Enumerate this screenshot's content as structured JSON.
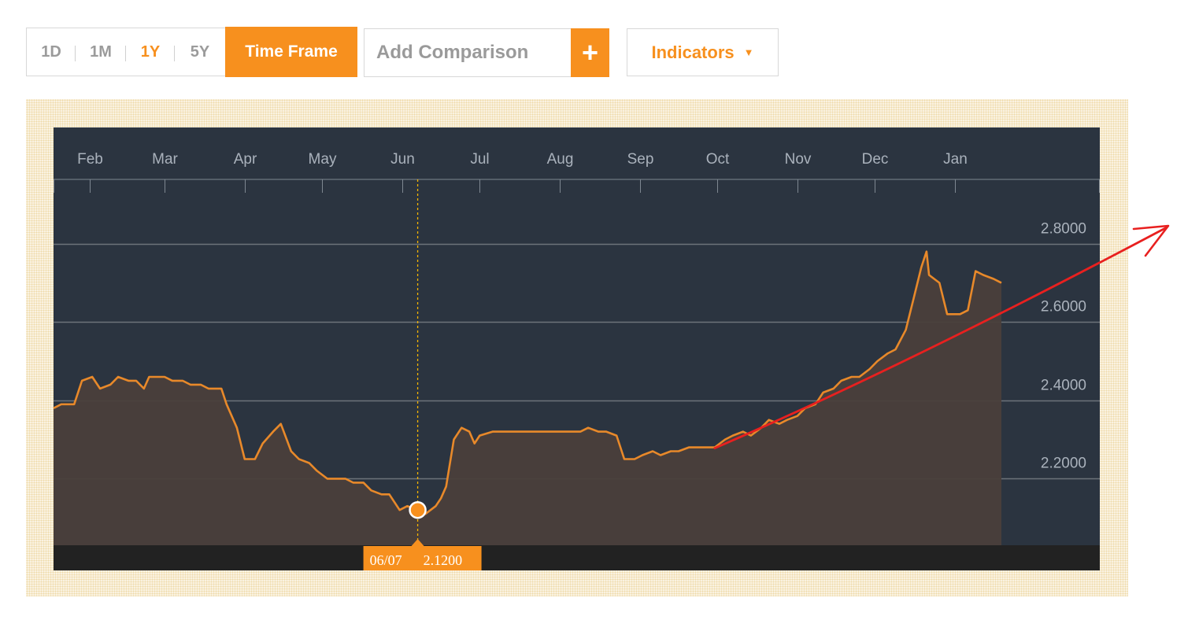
{
  "toolbar": {
    "ranges": [
      {
        "label": "1D",
        "active": false
      },
      {
        "label": "1M",
        "active": false
      },
      {
        "label": "1Y",
        "active": true
      },
      {
        "label": "5Y",
        "active": false
      }
    ],
    "time_frame_label": "Time Frame",
    "comparison_placeholder": "Add Comparison",
    "add_label": "+",
    "indicators_label": "Indicators",
    "indicators_caret": "▼"
  },
  "colors": {
    "accent": "#f7901e",
    "plot_bg": "#2b3440",
    "area_fill": "#4a3f3b",
    "line": "#e8892a",
    "annotation_arrow": "#e8201f"
  },
  "tooltip": {
    "date": "06/07",
    "value": "2.1200"
  },
  "chart_data": {
    "type": "area",
    "xlabel": "",
    "ylabel": "",
    "x_ticks": [
      "Feb",
      "Mar",
      "Apr",
      "May",
      "Jun",
      "Jul",
      "Aug",
      "Sep",
      "Oct",
      "Nov",
      "Dec",
      "Jan"
    ],
    "y_ticks": [
      "2.2000",
      "2.4000",
      "2.6000",
      "2.8000"
    ],
    "ylim": [
      2.03,
      2.93
    ],
    "x_domain": [
      "2016-01-18",
      "2017-01-30"
    ],
    "grid": true,
    "highlight": {
      "date": "2016-06-07",
      "value": 2.12
    },
    "series": [
      {
        "values": [
          [
            "2016-01-18",
            2.38
          ],
          [
            "2016-01-21",
            2.39
          ],
          [
            "2016-01-26",
            2.39
          ],
          [
            "2016-01-29",
            2.45
          ],
          [
            "2016-02-02",
            2.46
          ],
          [
            "2016-02-05",
            2.43
          ],
          [
            "2016-02-09",
            2.44
          ],
          [
            "2016-02-12",
            2.46
          ],
          [
            "2016-02-16",
            2.45
          ],
          [
            "2016-02-19",
            2.45
          ],
          [
            "2016-02-22",
            2.43
          ],
          [
            "2016-02-24",
            2.46
          ],
          [
            "2016-02-26",
            2.46
          ],
          [
            "2016-03-01",
            2.46
          ],
          [
            "2016-03-04",
            2.45
          ],
          [
            "2016-03-08",
            2.45
          ],
          [
            "2016-03-11",
            2.44
          ],
          [
            "2016-03-15",
            2.44
          ],
          [
            "2016-03-18",
            2.43
          ],
          [
            "2016-03-23",
            2.43
          ],
          [
            "2016-03-25",
            2.39
          ],
          [
            "2016-03-29",
            2.33
          ],
          [
            "2016-04-01",
            2.25
          ],
          [
            "2016-04-05",
            2.25
          ],
          [
            "2016-04-08",
            2.29
          ],
          [
            "2016-04-12",
            2.32
          ],
          [
            "2016-04-15",
            2.34
          ],
          [
            "2016-04-19",
            2.27
          ],
          [
            "2016-04-22",
            2.25
          ],
          [
            "2016-04-26",
            2.24
          ],
          [
            "2016-04-29",
            2.22
          ],
          [
            "2016-05-03",
            2.2
          ],
          [
            "2016-05-06",
            2.2
          ],
          [
            "2016-05-10",
            2.2
          ],
          [
            "2016-05-13",
            2.19
          ],
          [
            "2016-05-17",
            2.19
          ],
          [
            "2016-05-20",
            2.17
          ],
          [
            "2016-05-24",
            2.16
          ],
          [
            "2016-05-27",
            2.16
          ],
          [
            "2016-05-31",
            2.12
          ],
          [
            "2016-06-03",
            2.13
          ],
          [
            "2016-06-07",
            2.12
          ],
          [
            "2016-06-10",
            2.11
          ],
          [
            "2016-06-14",
            2.13
          ],
          [
            "2016-06-16",
            2.15
          ],
          [
            "2016-06-18",
            2.18
          ],
          [
            "2016-06-21",
            2.3
          ],
          [
            "2016-06-24",
            2.33
          ],
          [
            "2016-06-27",
            2.32
          ],
          [
            "2016-06-29",
            2.29
          ],
          [
            "2016-07-01",
            2.31
          ],
          [
            "2016-07-06",
            2.32
          ],
          [
            "2016-07-12",
            2.32
          ],
          [
            "2016-07-19",
            2.32
          ],
          [
            "2016-07-26",
            2.32
          ],
          [
            "2016-08-02",
            2.32
          ],
          [
            "2016-08-09",
            2.32
          ],
          [
            "2016-08-12",
            2.33
          ],
          [
            "2016-08-16",
            2.32
          ],
          [
            "2016-08-19",
            2.32
          ],
          [
            "2016-08-23",
            2.31
          ],
          [
            "2016-08-26",
            2.25
          ],
          [
            "2016-08-30",
            2.25
          ],
          [
            "2016-09-02",
            2.26
          ],
          [
            "2016-09-06",
            2.27
          ],
          [
            "2016-09-09",
            2.26
          ],
          [
            "2016-09-13",
            2.27
          ],
          [
            "2016-09-16",
            2.27
          ],
          [
            "2016-09-20",
            2.28
          ],
          [
            "2016-09-23",
            2.28
          ],
          [
            "2016-09-27",
            2.28
          ],
          [
            "2016-09-30",
            2.28
          ],
          [
            "2016-10-04",
            2.3
          ],
          [
            "2016-10-07",
            2.31
          ],
          [
            "2016-10-11",
            2.32
          ],
          [
            "2016-10-14",
            2.31
          ],
          [
            "2016-10-18",
            2.33
          ],
          [
            "2016-10-21",
            2.35
          ],
          [
            "2016-10-25",
            2.34
          ],
          [
            "2016-10-28",
            2.35
          ],
          [
            "2016-11-01",
            2.36
          ],
          [
            "2016-11-04",
            2.38
          ],
          [
            "2016-11-08",
            2.39
          ],
          [
            "2016-11-11",
            2.42
          ],
          [
            "2016-11-15",
            2.43
          ],
          [
            "2016-11-18",
            2.45
          ],
          [
            "2016-11-22",
            2.46
          ],
          [
            "2016-11-25",
            2.46
          ],
          [
            "2016-11-29",
            2.48
          ],
          [
            "2016-12-02",
            2.5
          ],
          [
            "2016-12-06",
            2.52
          ],
          [
            "2016-12-09",
            2.53
          ],
          [
            "2016-12-13",
            2.58
          ],
          [
            "2016-12-16",
            2.66
          ],
          [
            "2016-12-19",
            2.74
          ],
          [
            "2016-12-21",
            2.78
          ],
          [
            "2016-12-22",
            2.72
          ],
          [
            "2016-12-26",
            2.7
          ],
          [
            "2016-12-29",
            2.62
          ],
          [
            "2017-01-03",
            2.62
          ],
          [
            "2017-01-06",
            2.63
          ],
          [
            "2017-01-09",
            2.73
          ],
          [
            "2017-01-12",
            2.72
          ],
          [
            "2017-01-16",
            2.71
          ],
          [
            "2017-01-19",
            2.7
          ]
        ]
      }
    ],
    "annotation_arrow": {
      "from": [
        "2016-09-30",
        2.28
      ],
      "to_offscreen": "upper-right"
    }
  }
}
